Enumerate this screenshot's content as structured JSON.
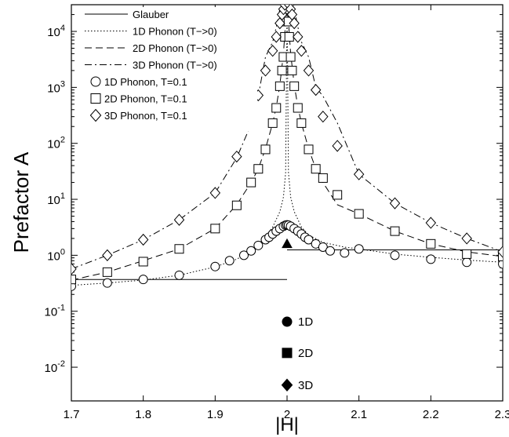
{
  "chart_data": {
    "type": "line",
    "xlabel": "|H|",
    "ylabel": "Prefactor  A",
    "xlim": [
      1.7,
      2.3
    ],
    "ylim": [
      0.0025,
      30000
    ],
    "yscale": "log",
    "x_ticks": [
      1.7,
      1.8,
      1.9,
      2.0,
      2.1,
      2.2,
      2.3
    ],
    "x_tick_labels": [
      "1.7",
      "1.8",
      "1.9",
      "2",
      "2.1",
      "2.2",
      "2.3"
    ],
    "y_ticks": [
      0.01,
      0.1,
      1,
      10,
      100,
      1000,
      10000
    ],
    "y_tick_labels": [
      {
        "base": "10",
        "exp": "-2"
      },
      {
        "base": "10",
        "exp": "-1"
      },
      {
        "base": "10",
        "exp": "0"
      },
      {
        "base": "10",
        "exp": "1"
      },
      {
        "base": "10",
        "exp": "2"
      },
      {
        "base": "10",
        "exp": "3"
      },
      {
        "base": "10",
        "exp": "4"
      }
    ],
    "legend_position": "top-left",
    "series": [
      {
        "name": "Glauber",
        "kind": "line",
        "style": "solid",
        "segments": [
          {
            "x": [
              1.7,
              2.0
            ],
            "y": [
              0.37,
              0.37
            ]
          },
          {
            "x": [
              2.0,
              2.3
            ],
            "y": [
              1.25,
              1.25
            ]
          }
        ]
      },
      {
        "name": "1D Phonon (T−>0)",
        "kind": "line",
        "style": "dotted",
        "x": [
          1.7,
          1.75,
          1.8,
          1.85,
          1.9,
          1.93,
          1.95,
          1.97,
          1.98,
          1.99,
          1.995,
          1.998,
          2.0,
          2.002,
          2.005,
          2.01,
          2.02,
          2.03,
          2.05,
          2.08,
          2.1,
          2.15,
          2.2,
          2.25,
          2.3
        ],
        "y": [
          0.29,
          0.32,
          0.36,
          0.44,
          0.62,
          0.85,
          1.2,
          2.1,
          3.2,
          6,
          11,
          30,
          30000,
          30,
          11,
          6,
          3.2,
          2.3,
          1.7,
          1.4,
          1.3,
          1.05,
          0.92,
          0.82,
          0.75
        ]
      },
      {
        "name": "2D Phonon (T−>0)",
        "kind": "line",
        "style": "dashed",
        "x": [
          1.7,
          1.75,
          1.8,
          1.85,
          1.9,
          1.93,
          1.95,
          1.96,
          1.97,
          1.98,
          1.985,
          1.99,
          1.995,
          1.998,
          2.0,
          2.002,
          2.005,
          2.01,
          2.015,
          2.02,
          2.03,
          2.04,
          2.05,
          2.07,
          2.1,
          2.15,
          2.2,
          2.25,
          2.3
        ],
        "y": [
          0.36,
          0.5,
          0.8,
          1.3,
          3,
          8,
          20,
          35,
          80,
          230,
          450,
          1100,
          4000,
          15000,
          30000,
          15000,
          4000,
          1100,
          450,
          230,
          80,
          35,
          20,
          8,
          5.5,
          2.7,
          1.6,
          1.15,
          0.95
        ]
      },
      {
        "name": "3D Phonon (T−>0)",
        "kind": "line",
        "style": "dashdot",
        "x": [
          1.7,
          1.75,
          1.8,
          1.85,
          1.9,
          1.93,
          1.95,
          1.96,
          1.97,
          1.98,
          1.985,
          1.99,
          1.995,
          1.998,
          2.0,
          2.002,
          2.005,
          2.01,
          2.015,
          2.02,
          2.03,
          2.04,
          2.05,
          2.07,
          2.1,
          2.15,
          2.2,
          2.25,
          2.3
        ],
        "y": [
          0.57,
          1.0,
          1.9,
          4.3,
          13,
          55,
          220,
          700,
          3500,
          6500,
          12000,
          25000,
          30000,
          30000,
          30000,
          30000,
          30000,
          25000,
          12000,
          6500,
          3500,
          1000,
          700,
          230,
          28,
          8.5,
          3.8,
          2.0,
          1.15
        ]
      },
      {
        "name": "1D Phonon, T=0.1",
        "kind": "marker",
        "marker": "circle",
        "x": [
          1.7,
          1.75,
          1.8,
          1.85,
          1.9,
          1.92,
          1.94,
          1.95,
          1.96,
          1.97,
          1.975,
          1.98,
          1.985,
          1.99,
          1.995,
          1.998,
          2.0,
          2.002,
          2.005,
          2.01,
          2.015,
          2.02,
          2.025,
          2.03,
          2.04,
          2.05,
          2.06,
          2.08,
          2.1,
          2.15,
          2.2,
          2.25,
          2.3
        ],
        "y": [
          0.28,
          0.32,
          0.37,
          0.44,
          0.63,
          0.8,
          1.0,
          1.2,
          1.5,
          1.9,
          2.1,
          2.4,
          2.7,
          3.0,
          3.3,
          3.45,
          3.5,
          3.45,
          3.3,
          3.0,
          2.7,
          2.4,
          2.1,
          1.9,
          1.6,
          1.4,
          1.2,
          1.1,
          1.3,
          1.0,
          0.85,
          0.75,
          0.7
        ]
      },
      {
        "name": "2D Phonon, T=0.1",
        "kind": "marker",
        "marker": "square",
        "x": [
          1.7,
          1.75,
          1.8,
          1.85,
          1.9,
          1.93,
          1.95,
          1.96,
          1.97,
          1.98,
          1.985,
          1.99,
          1.993,
          1.995,
          1.997,
          1.998,
          1.999,
          2.0,
          2.001,
          2.002,
          2.003,
          2.005,
          2.007,
          2.01,
          2.015,
          2.02,
          2.03,
          2.04,
          2.05,
          2.07,
          2.1,
          2.15,
          2.2,
          2.25,
          2.3
        ],
        "y": [
          0.37,
          0.5,
          0.77,
          1.3,
          3.0,
          7.8,
          20,
          35,
          78,
          230,
          430,
          1050,
          2000,
          3500,
          8000,
          15000,
          25000,
          30000,
          25000,
          15000,
          8000,
          3500,
          2000,
          1050,
          430,
          230,
          78,
          35,
          24,
          12,
          5.5,
          2.7,
          1.6,
          1.05,
          0.95
        ]
      },
      {
        "name": "3D Phonon, T=0.1",
        "kind": "marker",
        "marker": "diamond",
        "x": [
          1.7,
          1.75,
          1.8,
          1.85,
          1.9,
          1.93,
          1.95,
          1.96,
          1.97,
          1.98,
          1.985,
          1.99,
          1.993,
          1.995,
          1.997,
          2.003,
          2.005,
          2.007,
          2.01,
          2.015,
          2.02,
          2.03,
          2.04,
          2.05,
          2.07,
          2.1,
          2.15,
          2.2,
          2.25,
          2.3
        ],
        "y": [
          0.57,
          1.0,
          1.9,
          4.3,
          13,
          58,
          220,
          720,
          2000,
          4500,
          8000,
          14000,
          20000,
          25000,
          30000,
          30000,
          25000,
          20000,
          14000,
          8000,
          4500,
          2000,
          900,
          300,
          90,
          28,
          8.5,
          3.8,
          2.0,
          1.15
        ]
      }
    ],
    "annotations": [
      {
        "text": "1D",
        "marker": "filled-circle",
        "x": 2.0,
        "y": 0.065
      },
      {
        "text": "2D",
        "marker": "filled-square",
        "x": 2.0,
        "y": 0.018
      },
      {
        "text": "3D",
        "marker": "filled-diamond",
        "x": 2.0,
        "y": 0.0048
      },
      {
        "text": "",
        "marker": "filled-triangle",
        "x": 2.0,
        "y": 1.6
      }
    ]
  }
}
